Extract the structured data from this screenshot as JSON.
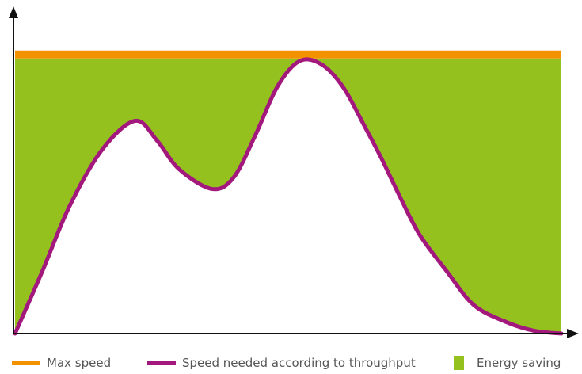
{
  "chart_data": {
    "type": "area",
    "title": "",
    "xlabel": "",
    "ylabel": "",
    "xlim": [
      0,
      100
    ],
    "ylim": [
      0,
      100
    ],
    "grid": false,
    "legend_placement": "bottom",
    "x": [
      0,
      5,
      10,
      16,
      22,
      26,
      30,
      36,
      40,
      44,
      48,
      52,
      56,
      60,
      64,
      67,
      70,
      74,
      79,
      84,
      90,
      95,
      100
    ],
    "series": [
      {
        "name": "Max speed",
        "values": [
          97,
          97,
          97,
          97,
          97,
          97,
          97,
          97,
          97,
          97,
          97,
          97,
          97,
          97,
          97,
          97,
          97,
          97,
          97,
          97,
          97,
          97,
          97
        ]
      },
      {
        "name": "Speed needed according to throughput",
        "values": [
          0,
          22,
          45,
          65,
          75,
          68,
          58,
          51,
          55,
          70,
          87,
          96,
          95,
          87,
          73,
          62,
          50,
          35,
          22,
          10,
          4,
          1,
          0
        ]
      }
    ],
    "fill_label": "Energy saving",
    "colors": {
      "max_speed": "#f39200",
      "speed_needed": "#a3187d",
      "energy_saving": "#95c11f",
      "axis": "#111111"
    }
  },
  "legend": {
    "items": [
      {
        "label": "Max speed",
        "color": "#f39200",
        "kind": "line"
      },
      {
        "label": "Speed needed according to throughput",
        "color": "#a3187d",
        "kind": "line"
      },
      {
        "label": "Energy saving",
        "color": "#95c11f",
        "kind": "block"
      }
    ]
  }
}
